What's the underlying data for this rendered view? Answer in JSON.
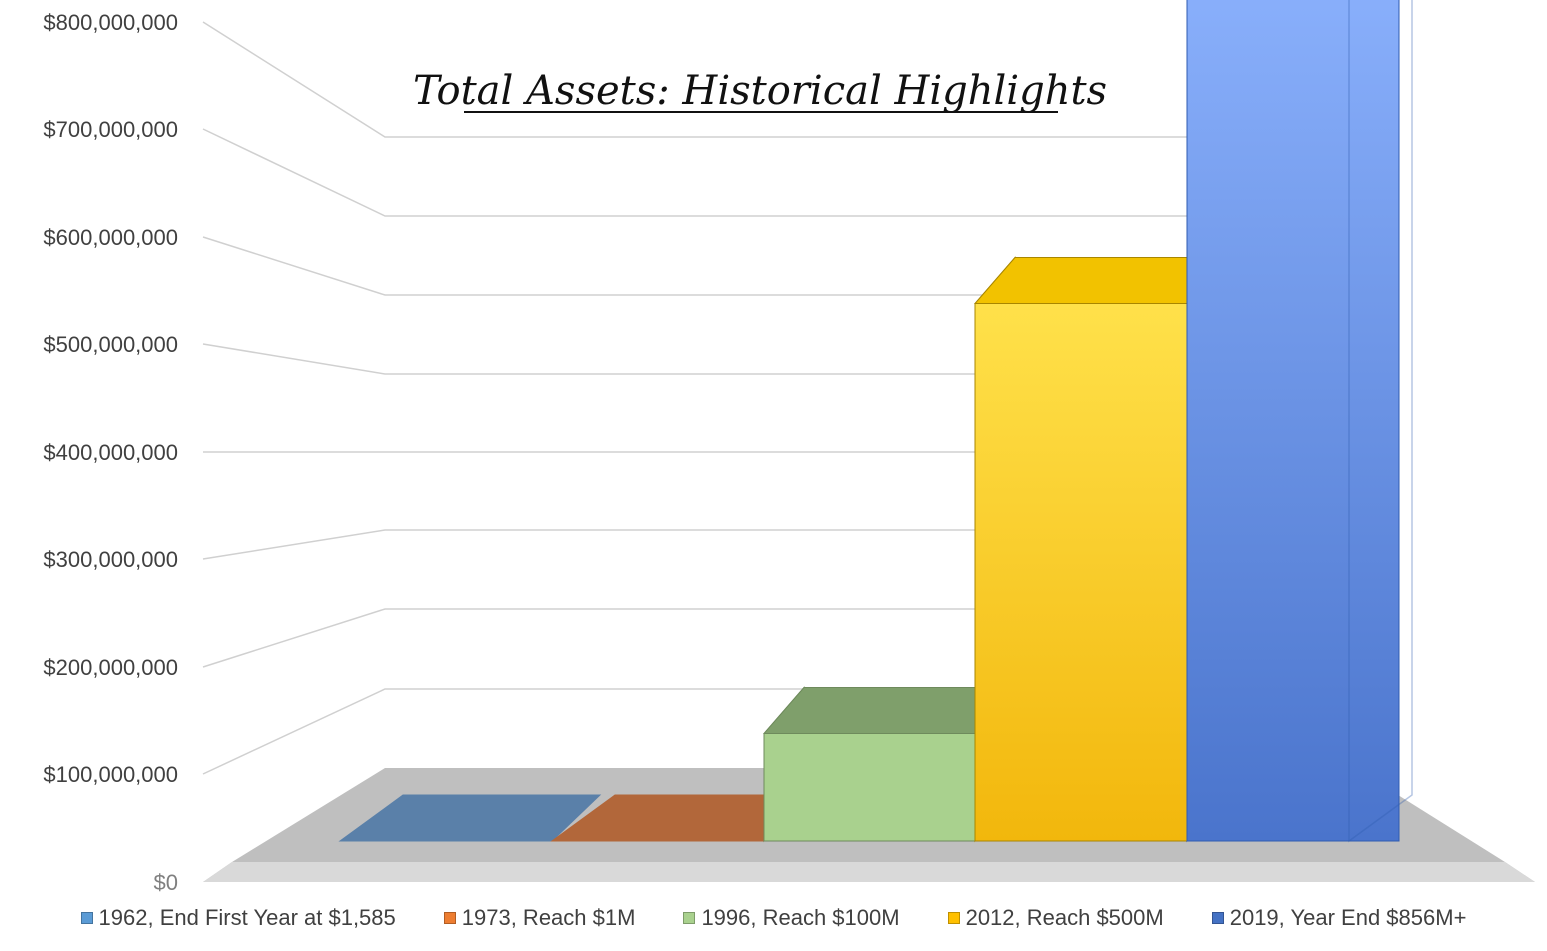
{
  "chart_data": {
    "type": "bar",
    "title": "Total Assets: Historical Highlights",
    "categories": [
      "1962, End First Year at $1,585",
      "1973, Reach $1M",
      "1996, Reach $100M",
      "2012, Reach $500M",
      "2019, Year End $856M+"
    ],
    "series": [
      {
        "name": "1962, End First Year at $1,585",
        "value": 1585,
        "color": "#5b9bd5"
      },
      {
        "name": "1973, Reach $1M",
        "value": 1000000,
        "color": "#ed7d31"
      },
      {
        "name": "1996, Reach $100M",
        "value": 100000000,
        "color": "#a9d18e"
      },
      {
        "name": "2012, Reach $500M",
        "value": 500000000,
        "color": "#ffc000"
      },
      {
        "name": "2019, Year End $856M+",
        "value": 856000000,
        "color": "#4472c4"
      }
    ],
    "ylim": [
      0,
      800000000
    ],
    "yticks": [
      "$0",
      "$100,000,000",
      "$200,000,000",
      "$300,000,000",
      "$400,000,000",
      "$500,000,000",
      "$600,000,000",
      "$700,000,000",
      "$800,000,000"
    ],
    "grid": true,
    "legend": "bottom",
    "projection": "3d-column"
  }
}
